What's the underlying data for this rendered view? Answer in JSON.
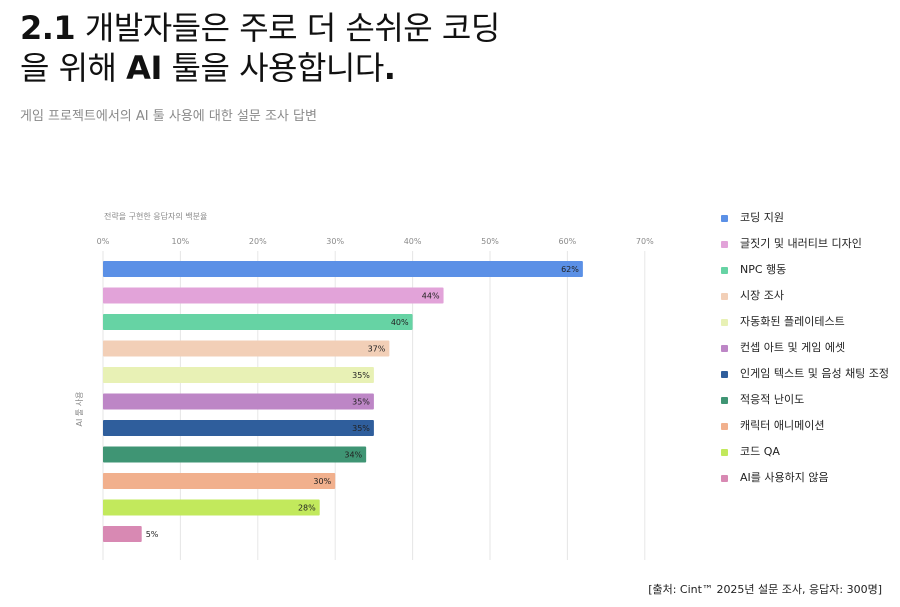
{
  "heading": {
    "num": "2.1",
    "line1_rest": "개발자들은 주로 더 손쉬운 코딩",
    "line2_a": "을 위해",
    "line2_ai": "AI",
    "line2_b": "툴을 사용합니다",
    "line2_period": "."
  },
  "subtitle": "게임 프로젝트에서의 AI 툴 사용에 대한 설문 조사 답변",
  "source": "[출처: Cint™ 2025년 설문 조사, 응답자: 300명]",
  "chart_data": {
    "type": "bar",
    "orientation": "horizontal",
    "xlabel": "전략을 구현한 응답자의 백분율",
    "ylabel": "AI 툴 사용",
    "xlim": [
      0,
      70
    ],
    "ticks": [
      "0%",
      "10%",
      "20%",
      "30%",
      "40%",
      "50%",
      "60%",
      "70%"
    ],
    "grid": true,
    "legend_position": "right",
    "categories": [
      "코딩 지원",
      "글짓기 및 내러티브 디자인",
      "NPC 행동",
      "시장 조사",
      "자동화된 플레이테스트",
      "컨셉 아트 및 게임 에셋",
      "인게임 텍스트 및 음성 채팅 조정",
      "적응적 난이도",
      "캐릭터 애니메이션",
      "코드 QA",
      "AI를 사용하지 않음"
    ],
    "values": [
      62,
      44,
      40,
      37,
      35,
      35,
      35,
      34,
      30,
      28,
      5
    ],
    "labels": [
      "62%",
      "44%",
      "40%",
      "37%",
      "35%",
      "35%",
      "35%",
      "34%",
      "30%",
      "28%",
      "5%"
    ],
    "colors": [
      "#5b90e6",
      "#e2a3d9",
      "#66d3a4",
      "#f2cfb7",
      "#e8f1b5",
      "#bd86c6",
      "#2f5e9c",
      "#3f9574",
      "#f1b08d",
      "#c2e95c",
      "#d889b3"
    ]
  }
}
